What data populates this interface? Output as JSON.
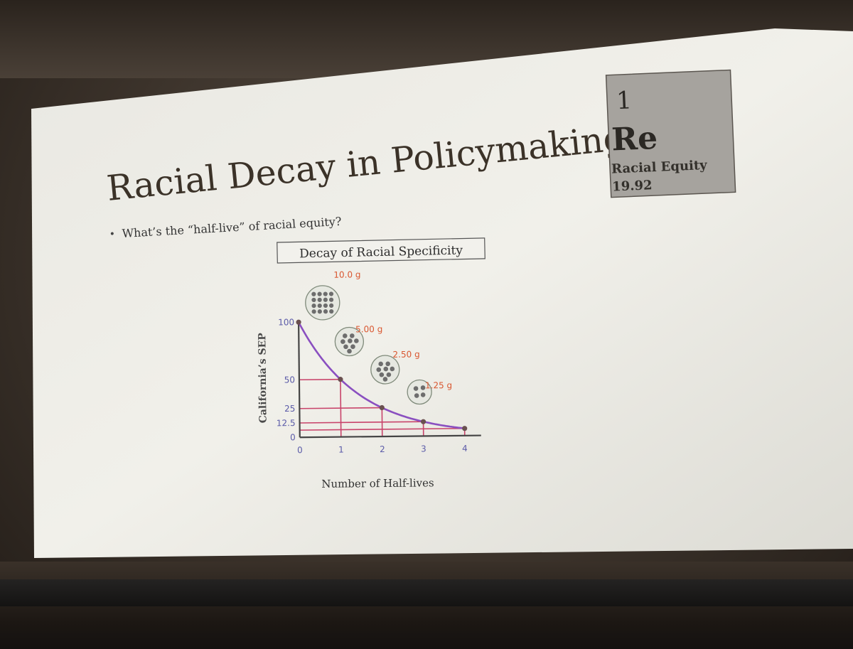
{
  "slide": {
    "title": "Racial Decay in Policymaking",
    "bullet": "What’s the “half-live” of racial equity?"
  },
  "element_tile": {
    "number": "1",
    "symbol": "Re",
    "name": "Racial Equity",
    "mass": "19.92"
  },
  "figure": {
    "caption": "Decay of Racial Specificity",
    "y_label": "California’s SEP",
    "x_label": "Number of Half-lives",
    "y_ticks": [
      {
        "value": 0,
        "label": "0"
      },
      {
        "value": 12.5,
        "label": "12.5"
      },
      {
        "value": 25,
        "label": "25"
      },
      {
        "value": 50,
        "label": "50"
      },
      {
        "value": 100,
        "label": "100"
      }
    ],
    "x_ticks": [
      {
        "value": 0,
        "label": "0"
      },
      {
        "value": 1,
        "label": "1"
      },
      {
        "value": 2,
        "label": "2"
      },
      {
        "value": 3,
        "label": "3"
      },
      {
        "value": 4,
        "label": "4"
      }
    ],
    "curve_points": [
      {
        "x": 0,
        "y": 100
      },
      {
        "x": 1,
        "y": 50
      },
      {
        "x": 2,
        "y": 25
      },
      {
        "x": 3,
        "y": 12.5
      },
      {
        "x": 4,
        "y": 6.25
      }
    ],
    "samples": [
      {
        "label": "10.0 g",
        "dots": 16
      },
      {
        "label": "5.00 g",
        "dots": 8
      },
      {
        "label": "2.50 g",
        "dots": 8
      },
      {
        "label": "1.25 g",
        "dots": 4
      }
    ],
    "colors": {
      "curve": "#8a4fc0",
      "grid": "#c8436a",
      "tick_label": "#5a5aa8",
      "sample_label": "#d9562f",
      "dots": "#6d6d6d"
    }
  }
}
